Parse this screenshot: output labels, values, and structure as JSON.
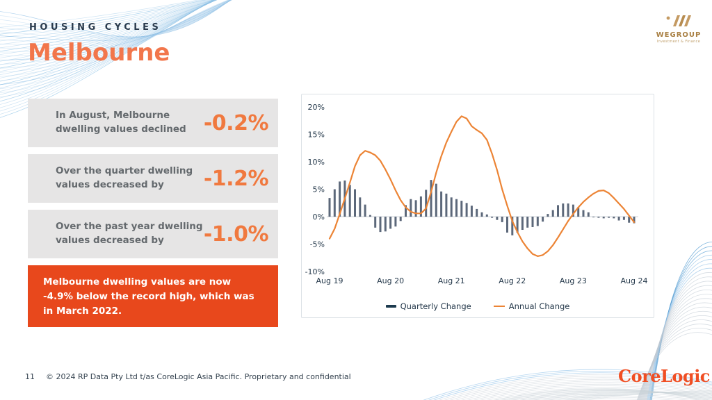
{
  "slide": {
    "eyebrow": "HOUSING CYCLES",
    "title": "Melbourne",
    "page_number": "11",
    "footer_text": "© 2024 RP Data Pty Ltd t/as CoreLogic Asia Pacific. Proprietary and confidential"
  },
  "logos": {
    "wegroup_name": "WEGROUP",
    "wegroup_tagline": "Investment & Finance",
    "corelogic": "CoreLogic"
  },
  "stats": [
    {
      "label": "In August, Melbourne dwelling values declined",
      "value": "-0.2%"
    },
    {
      "label": "Over the quarter dwelling values decreased by",
      "value": "-1.2%"
    },
    {
      "label": "Over the past year dwelling values decreased by",
      "value": "-1.0%"
    }
  ],
  "callout": {
    "text": "Melbourne dwelling values are now -4.9% below the record high, which was in March 2022."
  },
  "colors": {
    "accent_orange": "#F0793F",
    "callout_bg": "#E8481C",
    "stat_box_bg": "#E6E5E5",
    "navy_text": "#24384A",
    "bar_color": "#5C687A",
    "line_color": "#EC8435",
    "legend_bar_marker": "#1C3A4E",
    "wave_blue": "#5AA7DC"
  },
  "chart_data": {
    "type": "bar+line",
    "title": "",
    "x_axis": {
      "start": "Aug 2019",
      "end": "Aug 2024",
      "frequency": "monthly",
      "tick_labels": [
        "Aug 19",
        "Aug 20",
        "Aug 21",
        "Aug 22",
        "Aug 23",
        "Aug 24"
      ],
      "tick_month_indices": [
        0,
        12,
        24,
        36,
        48,
        60
      ]
    },
    "y_axis": {
      "unit": "%",
      "ylim": [
        -10,
        20
      ],
      "tick_values": [
        20,
        15,
        10,
        5,
        0,
        -5,
        -10
      ],
      "tick_labels": [
        "20%",
        "15%",
        "10%",
        "5%",
        "0%",
        "-5%",
        "-10%"
      ]
    },
    "grid": "none, zero baseline only",
    "legend_position": "bottom",
    "series": [
      {
        "name": "Quarterly Change",
        "type": "bar",
        "color": "#5C687A",
        "values": [
          3.4,
          5.0,
          6.4,
          6.6,
          5.8,
          5.0,
          3.5,
          2.2,
          0.3,
          -2.0,
          -2.8,
          -2.7,
          -2.2,
          -1.8,
          -0.8,
          2.1,
          3.2,
          3.0,
          3.7,
          4.9,
          6.7,
          6.0,
          4.6,
          4.2,
          3.5,
          3.2,
          2.9,
          2.5,
          2.0,
          1.4,
          0.8,
          0.4,
          -0.2,
          -0.6,
          -1.0,
          -2.9,
          -3.4,
          -2.9,
          -2.4,
          -2.0,
          -1.9,
          -1.7,
          -0.9,
          0.5,
          1.2,
          2.1,
          2.4,
          2.4,
          2.2,
          1.7,
          1.2,
          0.8,
          -0.1,
          -0.2,
          -0.3,
          -0.2,
          -0.3,
          -0.7,
          -0.6,
          -1.1,
          -1.2
        ]
      },
      {
        "name": "Annual Change",
        "type": "line",
        "color": "#EC8435",
        "values": [
          -4.0,
          -2.2,
          0.5,
          3.3,
          6.2,
          9.2,
          11.2,
          12.0,
          11.7,
          11.2,
          10.2,
          8.6,
          6.8,
          4.8,
          3.0,
          1.7,
          0.9,
          0.6,
          0.6,
          1.5,
          4.5,
          8.0,
          11.0,
          13.5,
          15.5,
          17.3,
          18.3,
          17.9,
          16.5,
          15.8,
          15.2,
          14.0,
          11.5,
          8.5,
          5.0,
          2.0,
          -0.8,
          -2.8,
          -4.5,
          -5.8,
          -6.8,
          -7.2,
          -7.0,
          -6.3,
          -5.2,
          -3.8,
          -2.3,
          -0.8,
          0.5,
          1.7,
          2.7,
          3.5,
          4.2,
          4.7,
          4.8,
          4.3,
          3.4,
          2.4,
          1.4,
          0.2,
          -1.0
        ]
      }
    ]
  }
}
